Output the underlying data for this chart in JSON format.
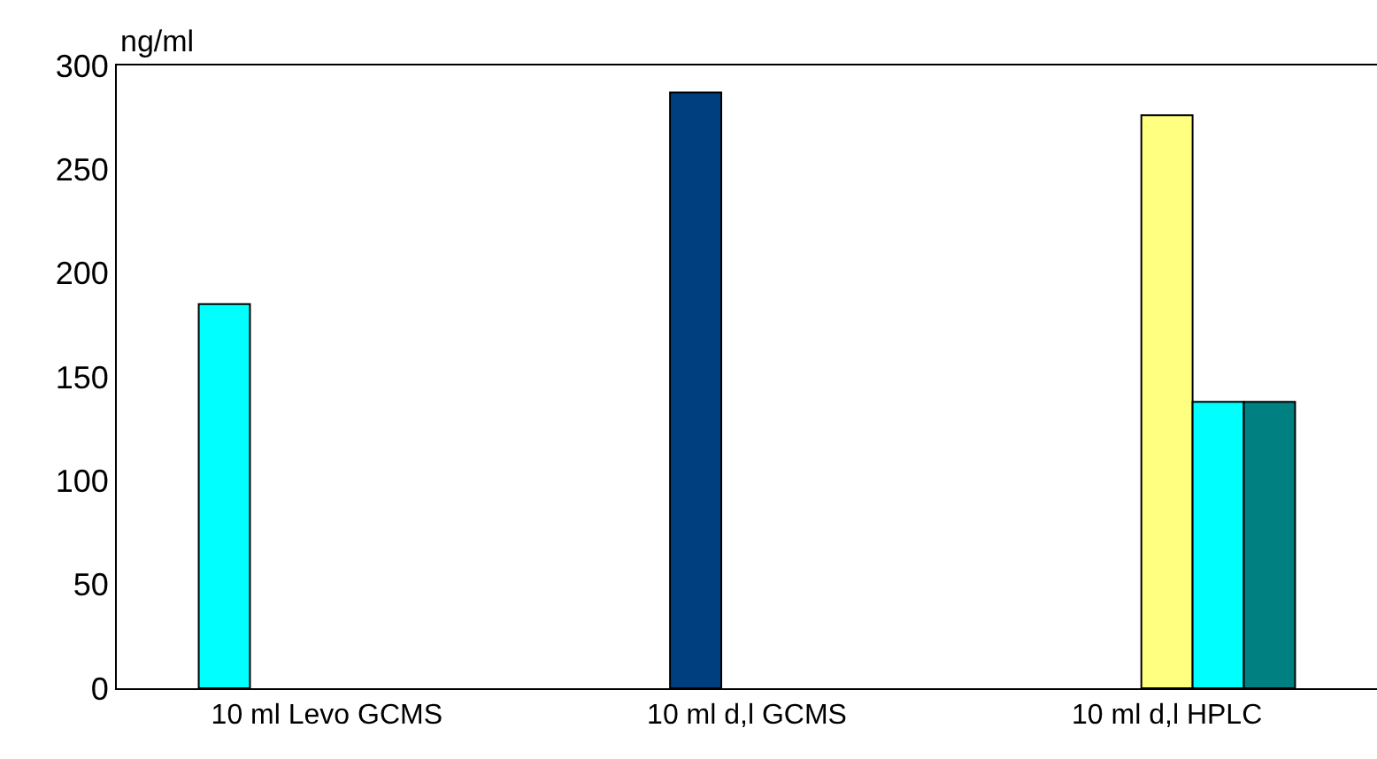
{
  "chart_data": {
    "type": "bar",
    "ylabel": "ng/ml",
    "categories": [
      "10 ml Levo GCMS",
      "10 ml d,l GCMS",
      "10 ml d,l HPLC"
    ],
    "series": [
      {
        "color": "#00ffff",
        "values": [
          185,
          null,
          null
        ]
      },
      {
        "color": "#003f7f",
        "values": [
          null,
          287,
          null
        ]
      },
      {
        "color": "#ffff80",
        "values": [
          null,
          null,
          276
        ]
      },
      {
        "color": "#00ffff",
        "values": [
          null,
          null,
          138
        ]
      },
      {
        "color": "#008080",
        "values": [
          null,
          null,
          138
        ]
      }
    ],
    "ylim": [
      0,
      300
    ],
    "yticks": [
      0,
      50,
      100,
      150,
      200,
      250,
      300
    ]
  }
}
